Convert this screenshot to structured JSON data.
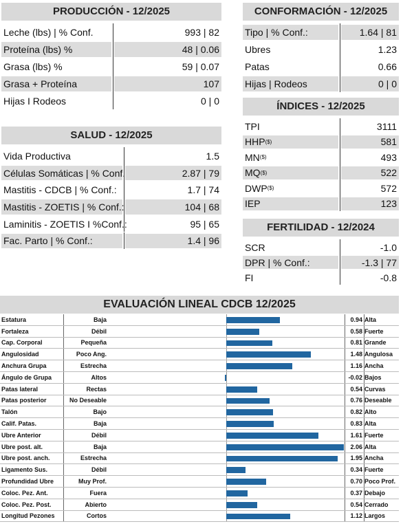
{
  "production": {
    "title": "PRODUCCIÓN - 12/2025",
    "rows": [
      [
        "Leche (lbs) | % Conf.",
        "993 | 82"
      ],
      [
        "Proteína (lbs) %",
        "48 | 0.06"
      ],
      [
        "Grasa (lbs) %",
        "59 | 0.07"
      ],
      [
        "Grasa + Proteína",
        "107"
      ],
      [
        "Hijas I Rodeos",
        "0 | 0"
      ]
    ]
  },
  "health": {
    "title": "SALUD - 12/2025",
    "rows": [
      [
        "Vida Productiva",
        "1.5"
      ],
      [
        "Células Somáticas | % Conf.:",
        "2.87 | 79"
      ],
      [
        "Mastitis - CDCB | % Conf.:",
        "1.7 | 74"
      ],
      [
        "Mastitis - ZOETIS | % Conf.:",
        "104 | 68"
      ],
      [
        "Laminitis - ZOETIS I %Conf.:",
        "95 | 65"
      ],
      [
        "Fac. Parto | % Conf.:",
        "1.4 | 96"
      ]
    ]
  },
  "conformation": {
    "title": "CONFORMACIÓN - 12/2025",
    "rows": [
      [
        "Tipo | % Conf.:",
        "1.64 | 81"
      ],
      [
        "Ubres",
        "1.23"
      ],
      [
        "Patas",
        "0.66"
      ],
      [
        "Hijas | Rodeos",
        "0 | 0"
      ]
    ]
  },
  "indices": {
    "title": "ÍNDICES - 12/2025",
    "rows": [
      [
        "TPI",
        "3111"
      ],
      [
        "HHP",
        "581",
        "($)"
      ],
      [
        "MN",
        "493",
        "($)"
      ],
      [
        "MQ",
        "522",
        "($)"
      ],
      [
        "DWP",
        "572",
        "($)"
      ],
      [
        "IEP",
        "123"
      ]
    ]
  },
  "fertility": {
    "title": "FERTILIDAD - 12/2024",
    "rows": [
      [
        "SCR",
        "-1.0"
      ],
      [
        "DPR | % Conf.:",
        "-1.3 | 77"
      ],
      [
        "FI",
        "-0.8"
      ]
    ]
  },
  "linear": {
    "title": "EVALUACIÓN LINEAL CDCB 12/2025",
    "traits": [
      "Estatura",
      "Fortaleza",
      "Cap. Corporal",
      "Angulosidad",
      "Anchura Grupa",
      "Ángulo de Grupa",
      "Patas lateral",
      "Patas posterior",
      "Talón",
      "Calif. Patas.",
      "Ubre Anterior",
      "Ubre post. alt.",
      "Ubre post. anch.",
      "Ligamento Sus.",
      "Profundidad Ubre",
      "Coloc. Pez. Ant.",
      "Coloc. Pez. Post.",
      "Longitud Pezones"
    ],
    "low": [
      "Baja",
      "Débil",
      "Pequeña",
      "Poco Ang.",
      "Estrecha",
      "Altos",
      "Rectas",
      "No Deseable",
      "Bajo",
      "Baja",
      "Débil",
      "Baja",
      "Estrecha",
      "Débil",
      "Muy Prof.",
      "Fuera",
      "Abierto",
      "Cortos"
    ],
    "high": [
      "Alta",
      "Fuerte",
      "Grande",
      "Angulosa",
      "Ancha",
      "Bajos",
      "Curvas",
      "Deseable",
      "Alto",
      "Alta",
      "Fuerte",
      "Alta",
      "Ancha",
      "Fuerte",
      "Poco Prof.",
      "Debajo",
      "Cerrado",
      "Largos"
    ],
    "values": [
      0.94,
      0.58,
      0.81,
      1.48,
      1.16,
      -0.02,
      0.54,
      0.76,
      0.82,
      0.83,
      1.61,
      2.06,
      1.95,
      0.34,
      0.7,
      0.37,
      0.54,
      1.12
    ],
    "value_labels": [
      "0.94",
      "0.58",
      "0.81",
      "1.48",
      "1.16",
      "-0.02",
      "0.54",
      "0.76",
      "0.82",
      "0.83",
      "1.61",
      "2.06",
      "1.95",
      "0.34",
      "0.70",
      "0.37",
      "0.54",
      "1.12"
    ],
    "color": "#2166a0"
  }
}
